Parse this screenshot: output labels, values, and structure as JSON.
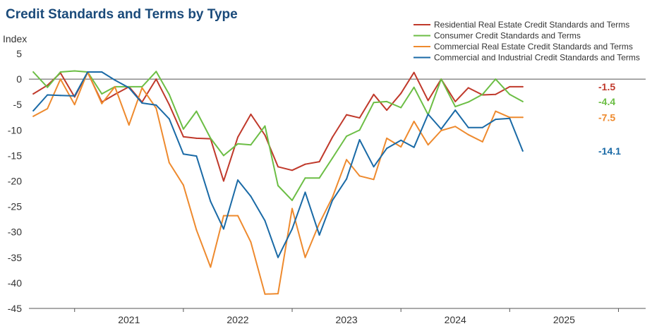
{
  "chart_data": {
    "type": "line",
    "title": "Credit Standards and Terms by Type",
    "ylabel": "Index",
    "xlabel": "",
    "ylim": [
      -45,
      5
    ],
    "yticks": [
      5,
      0,
      -5,
      -10,
      -15,
      -20,
      -25,
      -30,
      -35,
      -40,
      -45
    ],
    "x_start": 2020.58,
    "x_end": 2026.25,
    "year_ticks": [
      2021,
      2022,
      2023,
      2024,
      2025
    ],
    "xlabels": [
      "2021",
      "2022",
      "2023",
      "2024",
      "2025"
    ],
    "legend_position": "top-right",
    "series": [
      {
        "name": "Residential Real Estate Credit Standards and Terms",
        "color": "#c0392b",
        "end_label": "-1.5",
        "x": [
          2020.62,
          2020.75,
          2020.87,
          2021.0,
          2021.12,
          2021.25,
          2021.37,
          2021.5,
          2021.62,
          2021.75,
          2021.87,
          2022.0,
          2022.12,
          2022.25,
          2022.37,
          2022.5,
          2022.62,
          2022.75,
          2022.87,
          2023.0,
          2023.12,
          2023.25,
          2023.37,
          2023.5,
          2023.62,
          2023.75,
          2023.87,
          2024.0,
          2024.12,
          2024.25,
          2024.37,
          2024.5,
          2024.62,
          2024.75,
          2024.87,
          2025.0,
          2025.12
        ],
        "values": [
          -2.9,
          -1.2,
          1.2,
          -3.5,
          1.3,
          -4.5,
          -3.0,
          -1.5,
          -4.5,
          0.0,
          -5.0,
          -11.3,
          -11.6,
          -11.7,
          -20.0,
          -11.4,
          -6.9,
          -11.0,
          -17.2,
          -17.9,
          -16.7,
          -16.2,
          -11.4,
          -7.0,
          -7.6,
          -3.0,
          -6.1,
          -2.8,
          1.3,
          -4.2,
          0.0,
          -4.4,
          -1.7,
          -3.1,
          -3.0,
          -1.5,
          -1.5
        ]
      },
      {
        "name": "Consumer Credit Standards and Terms",
        "color": "#6cbe45",
        "end_label": "-4.4",
        "x": [
          2020.62,
          2020.75,
          2020.87,
          2021.0,
          2021.12,
          2021.25,
          2021.37,
          2021.5,
          2021.62,
          2021.75,
          2021.87,
          2022.0,
          2022.12,
          2022.25,
          2022.37,
          2022.5,
          2022.62,
          2022.75,
          2022.87,
          2023.0,
          2023.12,
          2023.25,
          2023.37,
          2023.5,
          2023.62,
          2023.75,
          2023.87,
          2024.0,
          2024.12,
          2024.25,
          2024.37,
          2024.5,
          2024.62,
          2024.75,
          2024.87,
          2025.0,
          2025.12
        ],
        "values": [
          1.4,
          -1.6,
          1.4,
          1.6,
          1.4,
          -2.9,
          -1.5,
          -1.5,
          -1.5,
          1.5,
          -3.0,
          -9.8,
          -6.3,
          -11.6,
          -15.0,
          -12.7,
          -12.9,
          -9.2,
          -20.9,
          -23.8,
          -19.4,
          -19.4,
          -15.5,
          -11.2,
          -10.0,
          -4.6,
          -4.4,
          -5.6,
          -1.6,
          -7.0,
          0.0,
          -5.4,
          -4.5,
          -3.0,
          0.0,
          -3.0,
          -4.4
        ]
      },
      {
        "name": "Commercial Real Estate Credit Standards and Terms",
        "color": "#ee8a2e",
        "end_label": "-7.5",
        "x": [
          2020.62,
          2020.75,
          2020.87,
          2021.0,
          2021.12,
          2021.25,
          2021.37,
          2021.5,
          2021.62,
          2021.75,
          2021.87,
          2022.0,
          2022.12,
          2022.25,
          2022.37,
          2022.5,
          2022.62,
          2022.75,
          2022.87,
          2023.0,
          2023.12,
          2023.25,
          2023.37,
          2023.5,
          2023.62,
          2023.75,
          2023.87,
          2024.0,
          2024.12,
          2024.25,
          2024.37,
          2024.5,
          2024.62,
          2024.75,
          2024.87,
          2025.0,
          2025.12
        ],
        "values": [
          -7.3,
          -5.8,
          0.0,
          -5.0,
          1.4,
          -4.8,
          -1.5,
          -9.0,
          -1.7,
          -5.7,
          -16.4,
          -20.8,
          -29.6,
          -36.9,
          -26.8,
          -26.8,
          -32.0,
          -42.2,
          -42.1,
          -25.4,
          -35.0,
          -28.3,
          -23.2,
          -15.8,
          -19.0,
          -19.7,
          -11.6,
          -13.3,
          -8.3,
          -12.9,
          -10.1,
          -9.3,
          -10.9,
          -12.3,
          -6.3,
          -7.5,
          -7.5
        ]
      },
      {
        "name": "Commercial and Industrial Credit Standards and Terms",
        "color": "#1a6aa6",
        "end_label": "-14.1",
        "x": [
          2020.62,
          2020.75,
          2020.87,
          2021.0,
          2021.12,
          2021.25,
          2021.37,
          2021.5,
          2021.62,
          2021.75,
          2021.87,
          2022.0,
          2022.12,
          2022.25,
          2022.37,
          2022.5,
          2022.62,
          2022.75,
          2022.87,
          2023.0,
          2023.12,
          2023.25,
          2023.37,
          2023.5,
          2023.62,
          2023.75,
          2023.87,
          2024.0,
          2024.12,
          2024.25,
          2024.37,
          2024.5,
          2024.62,
          2024.75,
          2024.87,
          2025.0,
          2025.12
        ],
        "values": [
          -6.2,
          -3.1,
          -3.2,
          -3.3,
          1.4,
          1.4,
          -0.2,
          -1.7,
          -4.7,
          -5.1,
          -7.8,
          -14.7,
          -15.1,
          -24.0,
          -29.4,
          -19.8,
          -23.0,
          -27.8,
          -35.0,
          -29.4,
          -22.2,
          -30.6,
          -23.8,
          -19.6,
          -11.9,
          -17.2,
          -13.6,
          -12.0,
          -13.4,
          -6.9,
          -9.8,
          -6.1,
          -9.5,
          -9.5,
          -7.9,
          -7.7,
          -14.1
        ]
      }
    ]
  }
}
